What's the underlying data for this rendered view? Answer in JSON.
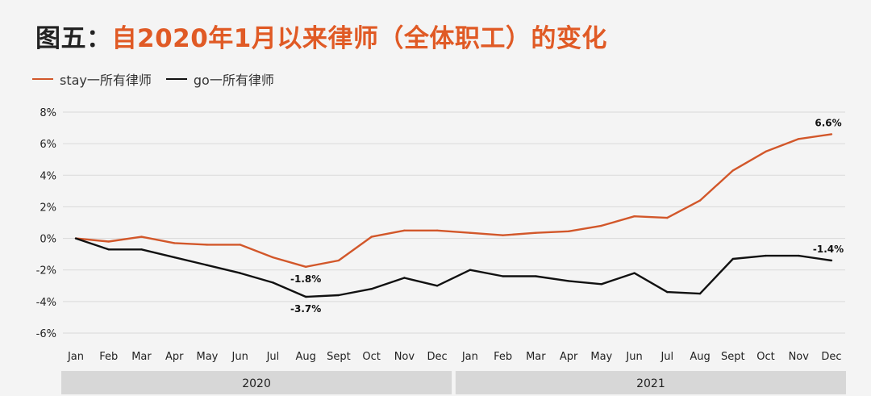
{
  "title": {
    "prefix": "图五：",
    "main": "自2020年1月以来律师（全体职工）的变化"
  },
  "legend": [
    {
      "name": "stay一所有律师",
      "color": "#d2572a"
    },
    {
      "name": "go一所有律师",
      "color": "#111111"
    }
  ],
  "chart_data": {
    "type": "line",
    "title": "自2020年1月以来律师（全体职工）的变化",
    "categories": [
      "Jan",
      "Feb",
      "Mar",
      "Apr",
      "May",
      "Jun",
      "Jul",
      "Aug",
      "Sept",
      "Oct",
      "Nov",
      "Dec",
      "Jan",
      "Feb",
      "Mar",
      "Apr",
      "May",
      "Jun",
      "Jul",
      "Aug",
      "Sept",
      "Oct",
      "Nov",
      "Dec"
    ],
    "groups": [
      {
        "label": "2020",
        "from": 0,
        "to": 11
      },
      {
        "label": "2021",
        "from": 12,
        "to": 23
      }
    ],
    "series": [
      {
        "name": "stay一所有律师",
        "color": "#d2572a",
        "values": [
          0,
          -0.2,
          0.1,
          -0.3,
          -0.4,
          -0.4,
          -1.2,
          -1.8,
          -1.4,
          0.1,
          0.5,
          0.5,
          0.35,
          0.2,
          0.35,
          0.45,
          0.8,
          1.4,
          1.3,
          2.4,
          4.3,
          5.5,
          6.3,
          6.6
        ]
      },
      {
        "name": "go一所有律师",
        "color": "#111111",
        "values": [
          0,
          -0.7,
          -0.7,
          -1.2,
          -1.7,
          -2.2,
          -2.8,
          -3.7,
          -3.6,
          -3.2,
          -2.5,
          -3.0,
          -2.0,
          -2.4,
          -2.4,
          -2.7,
          -2.9,
          -2.2,
          -3.4,
          -3.5,
          -1.3,
          -1.1,
          -1.1,
          -1.4
        ]
      }
    ],
    "annotations": [
      {
        "series": 0,
        "index": 7,
        "text": "-1.8%",
        "pos": "below"
      },
      {
        "series": 1,
        "index": 7,
        "text": "-3.7%",
        "pos": "below"
      },
      {
        "series": 0,
        "index": 23,
        "text": "6.6%",
        "pos": "above"
      },
      {
        "series": 1,
        "index": 23,
        "text": "-1.4%",
        "pos": "above"
      }
    ],
    "yticks": [
      8,
      6,
      4,
      2,
      0,
      -2,
      -4,
      -6
    ],
    "ytick_labels": [
      "8%",
      "6%",
      "4%",
      "2%",
      "0%",
      "-2%",
      "-4%",
      "-6%"
    ],
    "ylim": [
      -6,
      8
    ],
    "grid": true,
    "legend_position": "top-left"
  }
}
